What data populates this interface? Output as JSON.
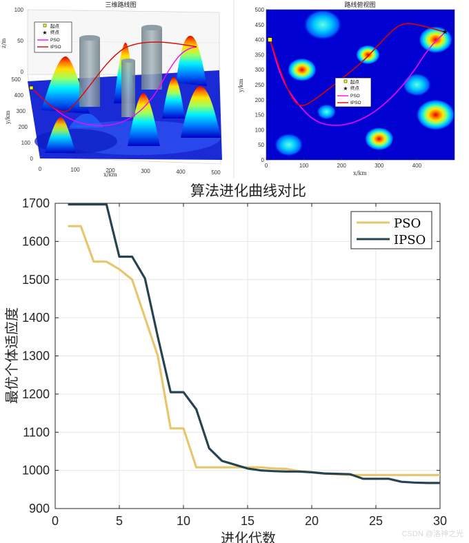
{
  "chart_data": [
    {
      "type": "surface",
      "title": "三维路线图",
      "xlabel": "x/km",
      "ylabel": "y/km",
      "zlabel": "z/m",
      "xlim": [
        0,
        500
      ],
      "ylim": [
        0,
        500
      ],
      "zlim": [
        0,
        100
      ],
      "x_ticks": [
        "0",
        "100",
        "200",
        "300",
        "400",
        "500"
      ],
      "y_ticks": [
        "0",
        "100",
        "200",
        "300",
        "400",
        "500"
      ],
      "z_ticks": [
        "0",
        "50",
        "100"
      ],
      "legend": {
        "position": "top-left",
        "entries": [
          {
            "label": "起点",
            "marker": "square",
            "color": "#ffff00"
          },
          {
            "label": "终点",
            "marker": "star",
            "color": "#000000"
          },
          {
            "label": "PSO",
            "color": "#ff00ff"
          },
          {
            "label": "IPSO",
            "color": "#e00000"
          }
        ]
      }
    },
    {
      "type": "heatmap",
      "title": "路线俯视图",
      "xlabel": "x/km",
      "ylabel": "y/km",
      "xlim": [
        0,
        500
      ],
      "ylim": [
        0,
        500
      ],
      "x_ticks": [
        0,
        100,
        200,
        300,
        400
      ],
      "y_ticks": [
        0,
        50,
        100,
        150,
        200,
        250,
        300,
        350,
        400,
        450,
        500
      ],
      "start": [
        10,
        400
      ],
      "end": [
        475,
        425
      ],
      "peaks": [
        {
          "x": 150,
          "y": 450,
          "r": 40,
          "level": 0.45
        },
        {
          "x": 95,
          "y": 300,
          "r": 30,
          "level": 0.9
        },
        {
          "x": 270,
          "y": 350,
          "r": 25,
          "level": 0.85
        },
        {
          "x": 450,
          "y": 400,
          "r": 35,
          "level": 0.95
        },
        {
          "x": 160,
          "y": 160,
          "r": 20,
          "level": 0.35
        },
        {
          "x": 400,
          "y": 250,
          "r": 30,
          "level": 0.45
        },
        {
          "x": 450,
          "y": 150,
          "r": 40,
          "level": 0.95
        },
        {
          "x": 300,
          "y": 70,
          "r": 30,
          "level": 0.85
        },
        {
          "x": 60,
          "y": 50,
          "r": 30,
          "level": 0.5
        }
      ],
      "series": [
        {
          "name": "PSO",
          "color": "#ff00ff",
          "points": [
            [
              10,
              400
            ],
            [
              40,
              270
            ],
            [
              80,
              190
            ],
            [
              130,
              125
            ],
            [
              190,
              110
            ],
            [
              260,
              135
            ],
            [
              330,
              200
            ],
            [
              390,
              290
            ],
            [
              430,
              370
            ],
            [
              475,
              425
            ]
          ]
        },
        {
          "name": "IPSO",
          "color": "#e00000",
          "points": [
            [
              10,
              400
            ],
            [
              50,
              250
            ],
            [
              85,
              170
            ],
            [
              130,
              200
            ],
            [
              200,
              270
            ],
            [
              260,
              330
            ],
            [
              310,
              400
            ],
            [
              360,
              460
            ],
            [
              420,
              445
            ],
            [
              475,
              425
            ]
          ]
        }
      ],
      "legend": {
        "position": "center",
        "entries": [
          {
            "label": "起点",
            "marker": "square",
            "color": "#ffff00"
          },
          {
            "label": "终点",
            "marker": "star",
            "color": "#000000"
          },
          {
            "label": "PSO",
            "color": "#ff00ff"
          },
          {
            "label": "IPSO",
            "color": "#e00000"
          }
        ]
      }
    },
    {
      "type": "line",
      "title": "算法进化曲线对比",
      "xlabel": "进化代数",
      "ylabel": "最优个体适应度",
      "xlim": [
        0,
        30
      ],
      "ylim": [
        900,
        1700
      ],
      "x_ticks": [
        0,
        5,
        10,
        15,
        20,
        25,
        30
      ],
      "y_ticks": [
        900,
        1000,
        1100,
        1200,
        1300,
        1400,
        1500,
        1600,
        1700
      ],
      "grid": true,
      "legend": {
        "position": "top-right"
      },
      "series": [
        {
          "name": "PSO",
          "color": "#e8c66e",
          "x": [
            1,
            2,
            3,
            4,
            5,
            6,
            7,
            8,
            9,
            10,
            11,
            12,
            13,
            14,
            15,
            16,
            17,
            18,
            19,
            20,
            21,
            22,
            23,
            24,
            25,
            26,
            27,
            28,
            29,
            30
          ],
          "values": [
            1640,
            1640,
            1547,
            1547,
            1527,
            1500,
            1400,
            1300,
            1110,
            1110,
            1008,
            1008,
            1008,
            1008,
            1008,
            1008,
            1005,
            1004,
            998,
            995,
            992,
            990,
            988,
            988,
            988,
            988,
            988,
            988,
            988,
            988
          ]
        },
        {
          "name": "IPSO",
          "color": "#26444f",
          "x": [
            1,
            2,
            3,
            4,
            5,
            6,
            7,
            8,
            9,
            10,
            11,
            12,
            13,
            14,
            15,
            16,
            17,
            18,
            19,
            20,
            21,
            22,
            23,
            24,
            25,
            26,
            27,
            28,
            29,
            30
          ],
          "values": [
            1697,
            1697,
            1697,
            1697,
            1560,
            1560,
            1503,
            1350,
            1205,
            1205,
            1160,
            1058,
            1025,
            1015,
            1005,
            1000,
            998,
            997,
            997,
            995,
            992,
            991,
            990,
            978,
            978,
            978,
            970,
            968,
            967,
            967
          ]
        }
      ]
    }
  ],
  "watermark": "CSDN @洛神之光"
}
